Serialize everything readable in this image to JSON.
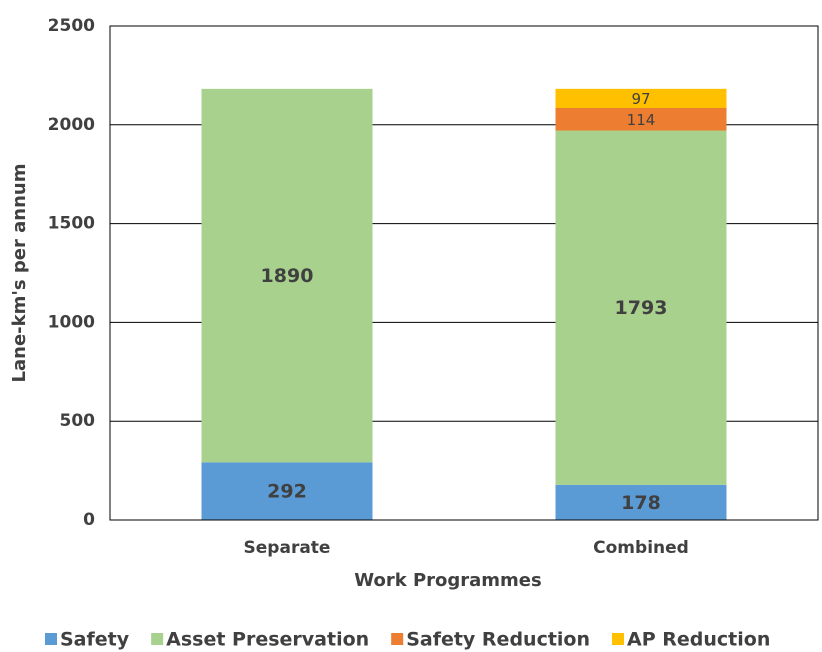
{
  "chart_data": {
    "type": "stacked_bar",
    "xlabel": "Work Programmes",
    "ylabel": "Lane-km's per annum",
    "categories": [
      "Separate",
      "Combined"
    ],
    "series": [
      {
        "name": "Safety",
        "color": "#5b9bd5",
        "values": [
          292,
          178
        ]
      },
      {
        "name": "Asset Preservation",
        "color": "#a9d18e",
        "values": [
          1890,
          1793
        ]
      },
      {
        "name": "Safety Reduction",
        "color": "#ed7d31",
        "values": [
          null,
          114
        ]
      },
      {
        "name": "AP Reduction",
        "color": "#ffc000",
        "values": [
          null,
          97
        ]
      }
    ],
    "ylim": [
      0,
      2500
    ],
    "yticks": [
      0,
      500,
      1000,
      1500,
      2000,
      2500
    ],
    "grid": true,
    "legend": "bottom"
  }
}
